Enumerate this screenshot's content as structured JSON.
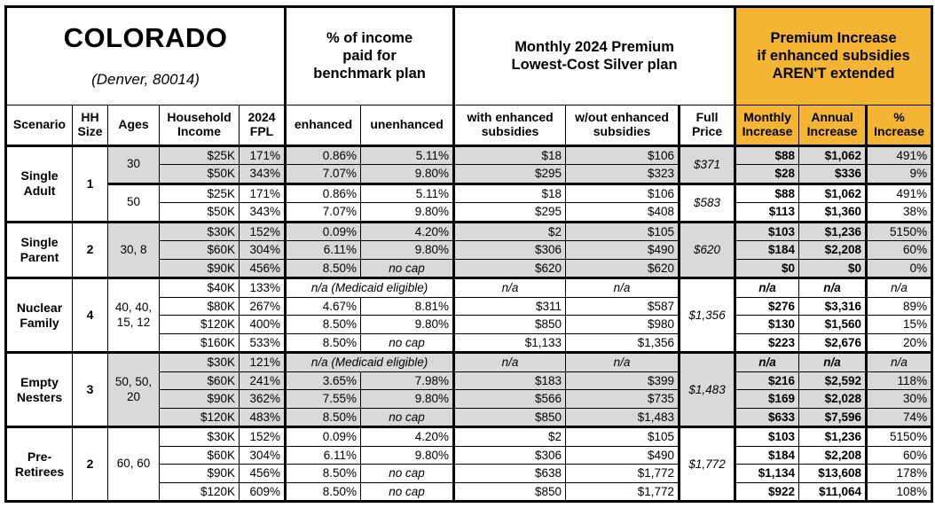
{
  "title": {
    "state": "COLORADO",
    "location": "(Denver, 80014)"
  },
  "colors": {
    "accent_orange": "#F4B434",
    "shade_gray": "#D9D9D9",
    "border": "#000000"
  },
  "group_headers": {
    "benchmark": "% of income\npaid for\nbenchmark plan",
    "premium": "Monthly 2024 Premium\nLowest-Cost Silver plan",
    "increase": "Premium Increase\nif enhanced subsidies\nAREN'T extended"
  },
  "columns": {
    "scenario": "Scenario",
    "hh_size": "HH\nSize",
    "ages": "Ages",
    "income": "Household\nIncome",
    "fpl": "2024\nFPL",
    "enhanced": "enhanced",
    "unenhanced": "unenhanced",
    "with_subsidies": "with enhanced\nsubsidies",
    "without_subsidies": "w/out enhanced\nsubsidies",
    "full_price": "Full\nPrice",
    "monthly_increase": "Monthly\nIncrease",
    "annual_increase": "Annual\nIncrease",
    "pct_increase": "%\nIncrease"
  },
  "groups": [
    {
      "scenario": "Single\nAdult",
      "hh_size": "1",
      "subgroups": [
        {
          "ages": "30",
          "shaded": true,
          "full_price": "$371",
          "rows": [
            {
              "income": "$25K",
              "fpl": "171%",
              "enhanced": "0.86%",
              "unenhanced": "5.11%",
              "with_subsidies": "$18",
              "without_subsidies": "$106",
              "monthly_increase": "$88",
              "annual_increase": "$1,062",
              "pct_increase": "491%"
            },
            {
              "income": "$50K",
              "fpl": "343%",
              "enhanced": "7.07%",
              "unenhanced": "9.80%",
              "with_subsidies": "$295",
              "without_subsidies": "$323",
              "monthly_increase": "$28",
              "annual_increase": "$336",
              "pct_increase": "9%"
            }
          ]
        },
        {
          "ages": "50",
          "shaded": false,
          "full_price": "$583",
          "rows": [
            {
              "income": "$25K",
              "fpl": "171%",
              "enhanced": "0.86%",
              "unenhanced": "5.11%",
              "with_subsidies": "$18",
              "without_subsidies": "$106",
              "monthly_increase": "$88",
              "annual_increase": "$1,062",
              "pct_increase": "491%"
            },
            {
              "income": "$50K",
              "fpl": "343%",
              "enhanced": "7.07%",
              "unenhanced": "9.80%",
              "with_subsidies": "$295",
              "without_subsidies": "$408",
              "monthly_increase": "$113",
              "annual_increase": "$1,360",
              "pct_increase": "38%"
            }
          ]
        }
      ]
    },
    {
      "scenario": "Single\nParent",
      "hh_size": "2",
      "subgroups": [
        {
          "ages": "30, 8",
          "shaded": true,
          "full_price": "$620",
          "rows": [
            {
              "income": "$30K",
              "fpl": "152%",
              "enhanced": "0.09%",
              "unenhanced": "4.20%",
              "with_subsidies": "$2",
              "without_subsidies": "$105",
              "monthly_increase": "$103",
              "annual_increase": "$1,236",
              "pct_increase": "5150%"
            },
            {
              "income": "$60K",
              "fpl": "304%",
              "enhanced": "6.11%",
              "unenhanced": "9.80%",
              "with_subsidies": "$306",
              "without_subsidies": "$490",
              "monthly_increase": "$184",
              "annual_increase": "$2,208",
              "pct_increase": "60%"
            },
            {
              "income": "$90K",
              "fpl": "456%",
              "enhanced": "8.50%",
              "unenhanced": "no cap",
              "with_subsidies": "$620",
              "without_subsidies": "$620",
              "monthly_increase": "$0",
              "annual_increase": "$0",
              "pct_increase": "0%"
            }
          ]
        }
      ]
    },
    {
      "scenario": "Nuclear\nFamily",
      "hh_size": "4",
      "subgroups": [
        {
          "ages": "40, 40,\n15, 12",
          "shaded": false,
          "full_price": "$1,356",
          "rows": [
            {
              "income": "$40K",
              "fpl": "133%",
              "medicaid_note": "n/a (Medicaid eligible)",
              "with_subsidies": "n/a",
              "without_subsidies": "n/a",
              "monthly_increase": "n/a",
              "annual_increase": "n/a",
              "pct_increase": "n/a"
            },
            {
              "income": "$80K",
              "fpl": "267%",
              "enhanced": "4.67%",
              "unenhanced": "8.81%",
              "with_subsidies": "$311",
              "without_subsidies": "$587",
              "monthly_increase": "$276",
              "annual_increase": "$3,316",
              "pct_increase": "89%"
            },
            {
              "income": "$120K",
              "fpl": "400%",
              "enhanced": "8.50%",
              "unenhanced": "9.80%",
              "with_subsidies": "$850",
              "without_subsidies": "$980",
              "monthly_increase": "$130",
              "annual_increase": "$1,560",
              "pct_increase": "15%"
            },
            {
              "income": "$160K",
              "fpl": "533%",
              "enhanced": "8.50%",
              "unenhanced": "no cap",
              "with_subsidies": "$1,133",
              "without_subsidies": "$1,356",
              "monthly_increase": "$223",
              "annual_increase": "$2,676",
              "pct_increase": "20%"
            }
          ]
        }
      ]
    },
    {
      "scenario": "Empty\nNesters",
      "hh_size": "3",
      "subgroups": [
        {
          "ages": "50, 50,\n20",
          "shaded": true,
          "full_price": "$1,483",
          "rows": [
            {
              "income": "$30K",
              "fpl": "121%",
              "medicaid_note": "n/a (Medicaid eligible)",
              "with_subsidies": "n/a",
              "without_subsidies": "n/a",
              "monthly_increase": "n/a",
              "annual_increase": "n/a",
              "pct_increase": "n/a"
            },
            {
              "income": "$60K",
              "fpl": "241%",
              "enhanced": "3.65%",
              "unenhanced": "7.98%",
              "with_subsidies": "$183",
              "without_subsidies": "$399",
              "monthly_increase": "$216",
              "annual_increase": "$2,592",
              "pct_increase": "118%"
            },
            {
              "income": "$90K",
              "fpl": "362%",
              "enhanced": "7.55%",
              "unenhanced": "9.80%",
              "with_subsidies": "$566",
              "without_subsidies": "$735",
              "monthly_increase": "$169",
              "annual_increase": "$2,028",
              "pct_increase": "30%"
            },
            {
              "income": "$120K",
              "fpl": "483%",
              "enhanced": "8.50%",
              "unenhanced": "no cap",
              "with_subsidies": "$850",
              "without_subsidies": "$1,483",
              "monthly_increase": "$633",
              "annual_increase": "$7,596",
              "pct_increase": "74%"
            }
          ]
        }
      ]
    },
    {
      "scenario": "Pre-\nRetirees",
      "hh_size": "2",
      "subgroups": [
        {
          "ages": "60, 60",
          "shaded": false,
          "full_price": "$1,772",
          "rows": [
            {
              "income": "$30K",
              "fpl": "152%",
              "enhanced": "0.09%",
              "unenhanced": "4.20%",
              "with_subsidies": "$2",
              "without_subsidies": "$105",
              "monthly_increase": "$103",
              "annual_increase": "$1,236",
              "pct_increase": "5150%"
            },
            {
              "income": "$60K",
              "fpl": "304%",
              "enhanced": "6.11%",
              "unenhanced": "9.80%",
              "with_subsidies": "$306",
              "without_subsidies": "$490",
              "monthly_increase": "$184",
              "annual_increase": "$2,208",
              "pct_increase": "60%"
            },
            {
              "income": "$90K",
              "fpl": "456%",
              "enhanced": "8.50%",
              "unenhanced": "no cap",
              "with_subsidies": "$638",
              "without_subsidies": "$1,772",
              "monthly_increase": "$1,134",
              "annual_increase": "$13,608",
              "pct_increase": "178%"
            },
            {
              "income": "$120K",
              "fpl": "609%",
              "enhanced": "8.50%",
              "unenhanced": "no cap",
              "with_subsidies": "$850",
              "without_subsidies": "$1,772",
              "monthly_increase": "$922",
              "annual_increase": "$11,064",
              "pct_increase": "108%"
            }
          ]
        }
      ]
    }
  ]
}
